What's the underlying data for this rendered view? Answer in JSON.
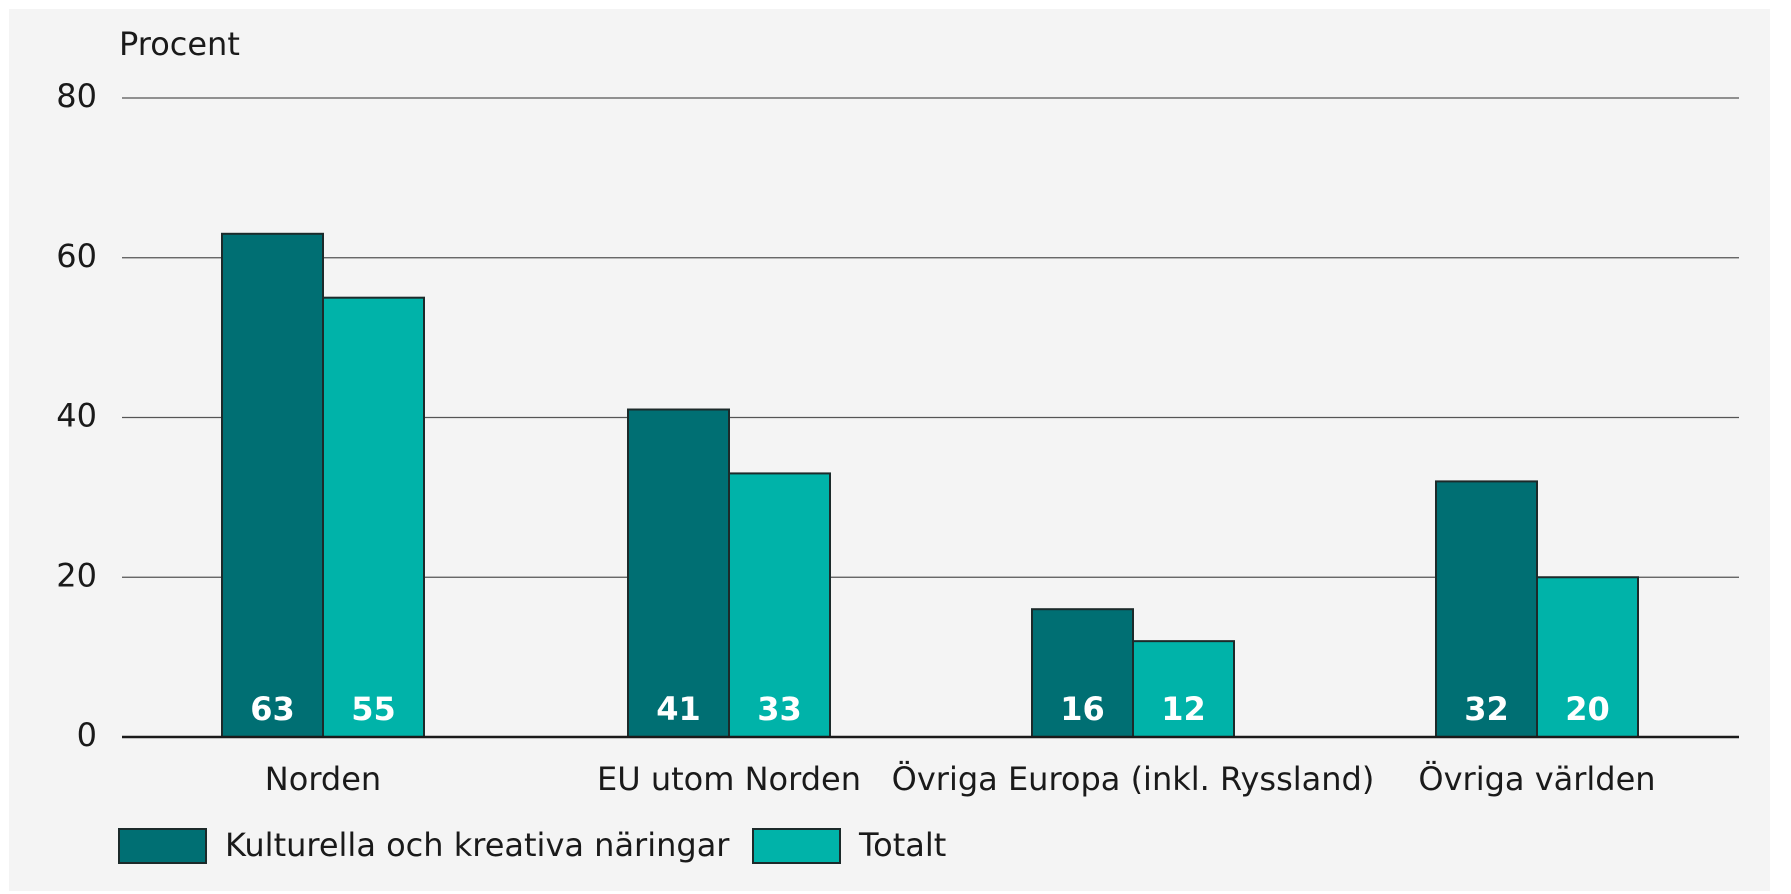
{
  "chart_data": {
    "type": "bar",
    "y_label": "Procent",
    "categories": [
      "Norden",
      "EU utom Norden",
      "Övriga Europa (inkl. Ryssland)",
      "Övriga världen"
    ],
    "series": [
      {
        "name": "Kulturella och kreativa näringar",
        "color": "#006f73",
        "values": [
          63,
          41,
          16,
          32
        ]
      },
      {
        "name": "Totalt",
        "color": "#00b3a9",
        "values": [
          55,
          33,
          12,
          20
        ]
      }
    ],
    "ylim": [
      0,
      80
    ],
    "yticks": [
      0,
      20,
      40,
      60,
      80
    ],
    "grid": true,
    "legend": "bottom"
  }
}
